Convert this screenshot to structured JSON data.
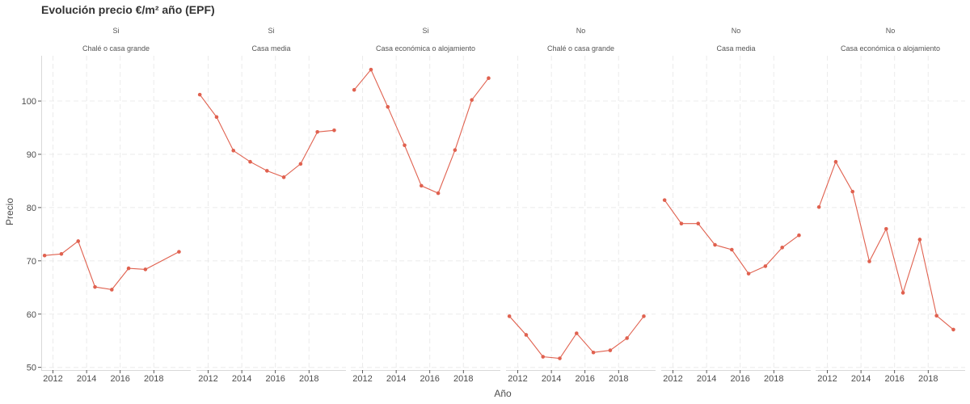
{
  "chart_data": {
    "type": "line",
    "title": "Evolución precio €/m² año (EPF)",
    "xlabel": "Año",
    "ylabel": "Precio",
    "ylim": [
      49.5,
      108.5
    ],
    "xlim": [
      2011.3,
      2020.2
    ],
    "y_ticks": [
      50,
      60,
      70,
      80,
      90,
      100
    ],
    "x_ticks": [
      2012,
      2014,
      2016,
      2018
    ],
    "grid": true,
    "legend": "none",
    "colors": {
      "series": "#e0614f",
      "grid": "#ebebeb",
      "axis": "#d9d9d9"
    },
    "panels": [
      {
        "facet1": "Si",
        "facet2": "Chalé o casa grande",
        "x": [
          2011.5,
          2012.5,
          2013.5,
          2014.5,
          2015.5,
          2016.5,
          2017.5,
          2019.5
        ],
        "values": [
          71.0,
          71.3,
          73.7,
          65.1,
          64.6,
          68.6,
          68.4,
          71.7
        ]
      },
      {
        "facet1": "Si",
        "facet2": "Casa media",
        "x": [
          2011.5,
          2012.5,
          2013.5,
          2014.5,
          2015.5,
          2016.5,
          2017.5,
          2018.5,
          2019.5
        ],
        "values": [
          101.2,
          97.0,
          90.7,
          88.6,
          86.9,
          85.7,
          88.2,
          94.2,
          94.5
        ]
      },
      {
        "facet1": "Si",
        "facet2": "Casa económica o alojamiento",
        "x": [
          2011.5,
          2012.5,
          2013.5,
          2014.5,
          2015.5,
          2016.5,
          2017.5,
          2018.5,
          2019.5
        ],
        "values": [
          102.1,
          105.9,
          98.9,
          91.7,
          84.1,
          82.7,
          90.8,
          100.2,
          104.3
        ]
      },
      {
        "facet1": "No",
        "facet2": "Chalé o casa grande",
        "x": [
          2011.5,
          2012.5,
          2013.5,
          2014.5,
          2015.5,
          2016.5,
          2017.5,
          2018.5,
          2019.5
        ],
        "values": [
          59.6,
          56.1,
          52.0,
          51.7,
          56.4,
          52.8,
          53.2,
          55.5,
          59.6
        ]
      },
      {
        "facet1": "No",
        "facet2": "Casa media",
        "x": [
          2011.5,
          2012.5,
          2013.5,
          2014.5,
          2015.5,
          2016.5,
          2017.5,
          2018.5,
          2019.5
        ],
        "values": [
          81.4,
          77.0,
          77.0,
          73.0,
          72.1,
          67.6,
          69.0,
          72.5,
          74.8
        ]
      },
      {
        "facet1": "No",
        "facet2": "Casa económica o alojamiento",
        "x": [
          2011.5,
          2012.5,
          2013.5,
          2014.5,
          2015.5,
          2016.5,
          2017.5,
          2018.5,
          2019.5
        ],
        "values": [
          80.1,
          88.6,
          83.0,
          69.9,
          76.0,
          64.0,
          74.0,
          59.7,
          57.1
        ]
      }
    ]
  }
}
